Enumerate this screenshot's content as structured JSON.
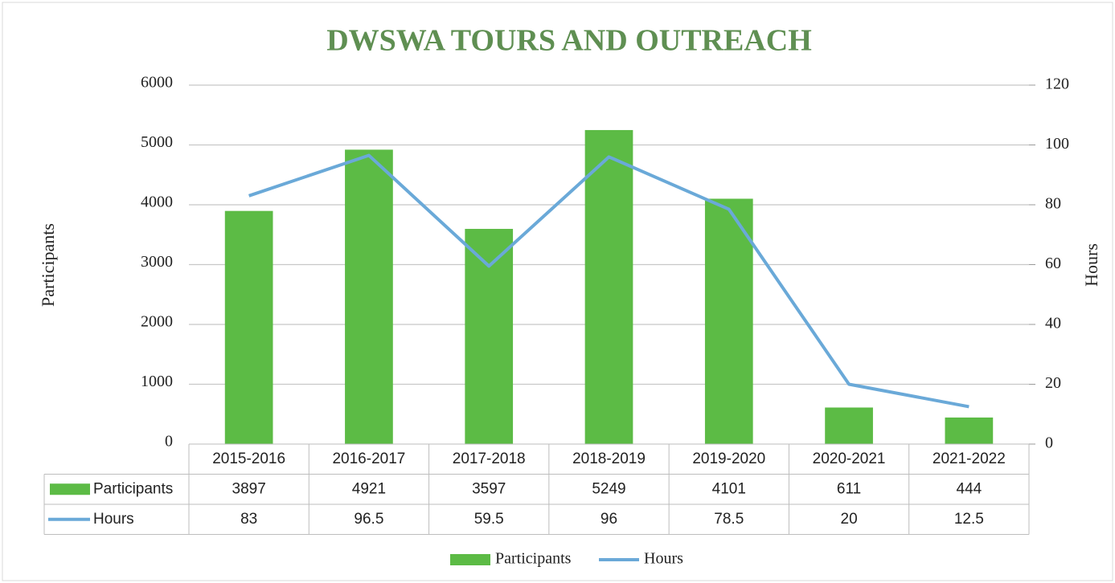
{
  "chart_data": {
    "type": "combo",
    "title": "DWSWA TOURS AND OUTREACH",
    "y_label": "Participants",
    "y2_label": "Hours",
    "categories": [
      "2015-2016",
      "2016-2017",
      "2017-2018",
      "2018-2019",
      "2019-2020",
      "2020-2021",
      "2021-2022"
    ],
    "series": [
      {
        "name": "Participants",
        "mark": "bar",
        "color": "#5cbb45",
        "values": [
          3897,
          4921,
          3597,
          5249,
          4101,
          611,
          444
        ]
      },
      {
        "name": "Hours",
        "mark": "line",
        "axis": "y2",
        "color": "#6aa9d8",
        "values": [
          83,
          96.5,
          59.5,
          96,
          78.5,
          20,
          12.5
        ]
      }
    ],
    "ylim": [
      0,
      6000
    ],
    "yticks": [
      0,
      1000,
      2000,
      3000,
      4000,
      5000,
      6000
    ],
    "y2lim": [
      0,
      120
    ],
    "y2ticks": [
      0,
      20,
      40,
      60,
      80,
      100,
      120
    ],
    "grid": true,
    "legend": "bottom",
    "data_table": true
  }
}
